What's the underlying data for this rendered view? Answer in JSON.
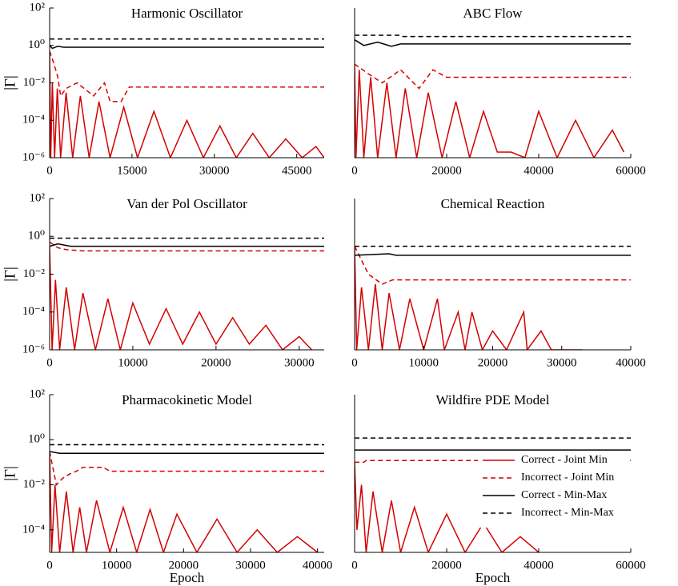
{
  "chart_data": [
    {
      "type": "line",
      "title": "Harmonic Oscillator",
      "y_label": "|Γ|",
      "log_y": true,
      "xlim": [
        0,
        50000
      ],
      "xticks": [
        0,
        15000,
        30000,
        45000
      ],
      "ylim": [
        1e-06,
        100
      ],
      "yticks": [
        {
          "value": 100,
          "label": "10²"
        },
        {
          "value": 1,
          "label": "10⁰"
        },
        {
          "value": 0.01,
          "label": "10⁻²"
        },
        {
          "value": 0.0001,
          "label": "10⁻⁴"
        },
        {
          "value": 1e-06,
          "label": "10⁻⁶"
        }
      ],
      "series": [
        {
          "color": "#d40000",
          "dash": false,
          "x": [
            0,
            200,
            500,
            900,
            1400,
            2000,
            3000,
            4200,
            5600,
            7200,
            9000,
            11000,
            13500,
            16000,
            19000,
            22000,
            25000,
            28000,
            31000,
            34000,
            37000,
            40000,
            43000,
            46000,
            48500,
            50000
          ],
          "values": [
            0.5,
            1e-06,
            0.01,
            1e-06,
            0.005,
            1e-06,
            0.003,
            1e-06,
            0.002,
            1e-06,
            0.001,
            1e-06,
            0.0005,
            1e-06,
            0.0003,
            1e-06,
            0.0001,
            1e-06,
            5e-05,
            1e-06,
            2e-05,
            1e-06,
            1e-05,
            1e-06,
            4e-06,
            1e-06
          ]
        },
        {
          "color": "#d40000",
          "dash": true,
          "x": [
            0,
            800,
            1500,
            2000,
            3000,
            5000,
            8000,
            10000,
            11000,
            13000,
            14500,
            15000,
            50000
          ],
          "values": [
            0.5,
            0.1,
            0.02,
            0.002,
            0.005,
            0.01,
            0.002,
            0.01,
            0.001,
            0.001,
            0.006,
            0.006,
            0.006
          ]
        },
        {
          "color": "#000000",
          "dash": false,
          "x": [
            0,
            500,
            1500,
            2500,
            50000
          ],
          "values": [
            1,
            0.7,
            0.9,
            0.8,
            0.8
          ]
        },
        {
          "color": "#000000",
          "dash": true,
          "x": [
            0,
            50000
          ],
          "values": [
            2.2,
            2.2
          ]
        }
      ]
    },
    {
      "type": "line",
      "title": "ABC Flow",
      "log_y": true,
      "xlim": [
        0,
        60000
      ],
      "xticks": [
        0,
        20000,
        40000,
        60000
      ],
      "ylim": [
        1e-06,
        100
      ],
      "series": [
        {
          "color": "#d40000",
          "dash": false,
          "x": [
            0,
            300,
            1000,
            2000,
            3500,
            5000,
            7000,
            9000,
            11000,
            13500,
            16000,
            19000,
            22000,
            25000,
            28000,
            31000,
            34000,
            37000,
            40000,
            44000,
            48000,
            52000,
            56000,
            58500
          ],
          "values": [
            0.1,
            1e-06,
            0.05,
            1e-06,
            0.02,
            1e-06,
            0.01,
            1e-06,
            0.005,
            1e-06,
            0.003,
            1e-06,
            0.001,
            1e-06,
            0.0003,
            2e-06,
            2e-06,
            1e-06,
            0.0003,
            1e-06,
            0.0001,
            1e-06,
            3e-05,
            2e-06
          ]
        },
        {
          "color": "#d40000",
          "dash": true,
          "x": [
            0,
            3000,
            6000,
            10000,
            14000,
            17000,
            20000,
            60000
          ],
          "values": [
            0.1,
            0.03,
            0.01,
            0.05,
            0.005,
            0.05,
            0.02,
            0.02
          ]
        },
        {
          "color": "#000000",
          "dash": false,
          "x": [
            0,
            2000,
            5000,
            8000,
            10000,
            60000
          ],
          "values": [
            2,
            1,
            1.5,
            0.9,
            1.2,
            1.2
          ]
        },
        {
          "color": "#000000",
          "dash": true,
          "x": [
            0,
            10000,
            10500,
            60000
          ],
          "values": [
            3.5,
            3.5,
            3,
            3
          ]
        }
      ]
    },
    {
      "type": "line",
      "title": "Van der Pol Oscillator",
      "y_label": "|Γ|",
      "log_y": true,
      "xlim": [
        0,
        33000
      ],
      "xticks": [
        0,
        10000,
        20000,
        30000
      ],
      "ylim": [
        1e-06,
        100
      ],
      "yticks": [
        {
          "value": 100,
          "label": "10²"
        },
        {
          "value": 1,
          "label": "10⁰"
        },
        {
          "value": 0.01,
          "label": "10⁻²"
        },
        {
          "value": 0.0001,
          "label": "10⁻⁴"
        },
        {
          "value": 1e-06,
          "label": "10⁻⁶"
        }
      ],
      "series": [
        {
          "color": "#d40000",
          "dash": false,
          "x": [
            0,
            300,
            700,
            1200,
            2000,
            3000,
            4000,
            5500,
            7000,
            8500,
            10000,
            12000,
            14000,
            16000,
            18000,
            20000,
            22000,
            24000,
            26000,
            28000,
            30000,
            31500
          ],
          "values": [
            0.3,
            1e-06,
            0.005,
            1e-06,
            0.002,
            1e-06,
            0.001,
            1e-06,
            0.0005,
            1e-06,
            0.0003,
            2e-06,
            0.00015,
            2e-06,
            0.0001,
            2e-06,
            5e-05,
            2e-06,
            2e-05,
            1e-06,
            5e-06,
            1e-06
          ]
        },
        {
          "color": "#d40000",
          "dash": true,
          "x": [
            0,
            1000,
            2000,
            4000,
            33000
          ],
          "values": [
            0.5,
            0.25,
            0.2,
            0.17,
            0.17
          ]
        },
        {
          "color": "#000000",
          "dash": false,
          "x": [
            0,
            1000,
            2500,
            33000
          ],
          "values": [
            0.3,
            0.4,
            0.3,
            0.3
          ]
        },
        {
          "color": "#000000",
          "dash": true,
          "x": [
            0,
            33000
          ],
          "values": [
            0.8,
            0.8
          ]
        }
      ]
    },
    {
      "type": "line",
      "title": "Chemical Reaction",
      "log_y": true,
      "xlim": [
        0,
        40000
      ],
      "xticks": [
        0,
        10000,
        20000,
        30000,
        40000
      ],
      "ylim": [
        1e-06,
        100
      ],
      "series": [
        {
          "color": "#d40000",
          "dash": false,
          "x": [
            0,
            300,
            1000,
            2000,
            3000,
            4000,
            5000,
            6500,
            8000,
            10000,
            12000,
            13000,
            15000,
            16000,
            17000,
            18500,
            20000,
            22000,
            24500,
            25000,
            27000,
            28500,
            30000,
            33000
          ],
          "values": [
            0.3,
            1e-06,
            0.002,
            1e-06,
            0.003,
            1e-06,
            0.001,
            1e-06,
            0.0005,
            1e-06,
            0.0005,
            1e-06,
            0.0001,
            1e-06,
            0.0001,
            1e-06,
            1e-05,
            1e-06,
            0.0001,
            1e-06,
            1e-05,
            1e-06,
            1e-06,
            1e-06
          ]
        },
        {
          "color": "#d40000",
          "dash": true,
          "x": [
            0,
            2000,
            4000,
            5500,
            40000
          ],
          "values": [
            0.3,
            0.01,
            0.003,
            0.005,
            0.005
          ]
        },
        {
          "color": "#000000",
          "dash": false,
          "x": [
            0,
            5000,
            6000,
            40000
          ],
          "values": [
            0.1,
            0.12,
            0.1,
            0.1
          ]
        },
        {
          "color": "#000000",
          "dash": true,
          "x": [
            0,
            40000
          ],
          "values": [
            0.3,
            0.3
          ]
        }
      ]
    },
    {
      "type": "line",
      "title": "Pharmacokinetic Model",
      "y_label": "|Γ|",
      "x_label": "Epoch",
      "log_y": true,
      "xlim": [
        0,
        41000
      ],
      "xticks": [
        0,
        10000,
        20000,
        30000,
        40000
      ],
      "ylim": [
        1e-05,
        100
      ],
      "yticks": [
        {
          "value": 100,
          "label": "10²"
        },
        {
          "value": 1,
          "label": "10⁰"
        },
        {
          "value": 0.01,
          "label": "10⁻²"
        },
        {
          "value": 0.0001,
          "label": "10⁻⁴"
        }
      ],
      "series": [
        {
          "color": "#d40000",
          "dash": false,
          "x": [
            0,
            300,
            800,
            1500,
            2500,
            3500,
            4500,
            5500,
            7000,
            9000,
            11000,
            13000,
            15000,
            17000,
            19000,
            22000,
            25000,
            28000,
            31000,
            34000,
            37000,
            40000
          ],
          "values": [
            0.3,
            1e-05,
            0.01,
            1e-05,
            0.005,
            1e-05,
            0.001,
            1e-05,
            0.002,
            1e-05,
            0.001,
            1e-05,
            0.0008,
            1e-05,
            0.0005,
            1e-05,
            0.0003,
            1e-05,
            0.0001,
            1e-05,
            5e-05,
            1e-05
          ]
        },
        {
          "color": "#d40000",
          "dash": true,
          "x": [
            0,
            1000,
            2000,
            3000,
            4000,
            5000,
            8000,
            9000,
            10000,
            41000
          ],
          "values": [
            0.3,
            0.01,
            0.02,
            0.03,
            0.04,
            0.06,
            0.06,
            0.04,
            0.04,
            0.04
          ]
        },
        {
          "color": "#000000",
          "dash": false,
          "x": [
            0,
            1500,
            41000
          ],
          "values": [
            0.3,
            0.25,
            0.25
          ]
        },
        {
          "color": "#000000",
          "dash": true,
          "x": [
            0,
            41000
          ],
          "values": [
            0.6,
            0.6
          ]
        }
      ]
    },
    {
      "type": "line",
      "title": "Wildfire PDE Model",
      "x_label": "Epoch",
      "log_y": true,
      "legend": "lower right",
      "xlim": [
        0,
        60000
      ],
      "xticks": [
        0,
        20000,
        40000,
        60000
      ],
      "ylim": [
        1e-05,
        100
      ],
      "series": [
        {
          "name": "Correct - Joint Min",
          "color": "#d40000",
          "dash": false,
          "x": [
            0,
            500,
            1500,
            2500,
            4000,
            6000,
            8000,
            10000,
            13000,
            16000,
            20000,
            24000,
            28000,
            32000,
            36000,
            40000
          ],
          "values": [
            0.1,
            0.0001,
            0.01,
            1e-05,
            0.005,
            1e-05,
            0.002,
            1e-05,
            0.001,
            1e-05,
            0.0005,
            1e-05,
            0.0002,
            1e-05,
            5e-05,
            1e-05
          ]
        },
        {
          "name": "Incorrect - Joint Min",
          "color": "#d40000",
          "dash": true,
          "x": [
            0,
            2000,
            2500,
            60000
          ],
          "values": [
            0.1,
            0.1,
            0.12,
            0.12
          ]
        },
        {
          "name": "Correct - Min-Max",
          "color": "#000000",
          "dash": false,
          "x": [
            0,
            60000
          ],
          "values": [
            0.35,
            0.35
          ]
        },
        {
          "name": "Incorrect - Min-Max",
          "color": "#000000",
          "dash": true,
          "x": [
            0,
            60000
          ],
          "values": [
            1.2,
            1.2
          ]
        }
      ]
    }
  ]
}
